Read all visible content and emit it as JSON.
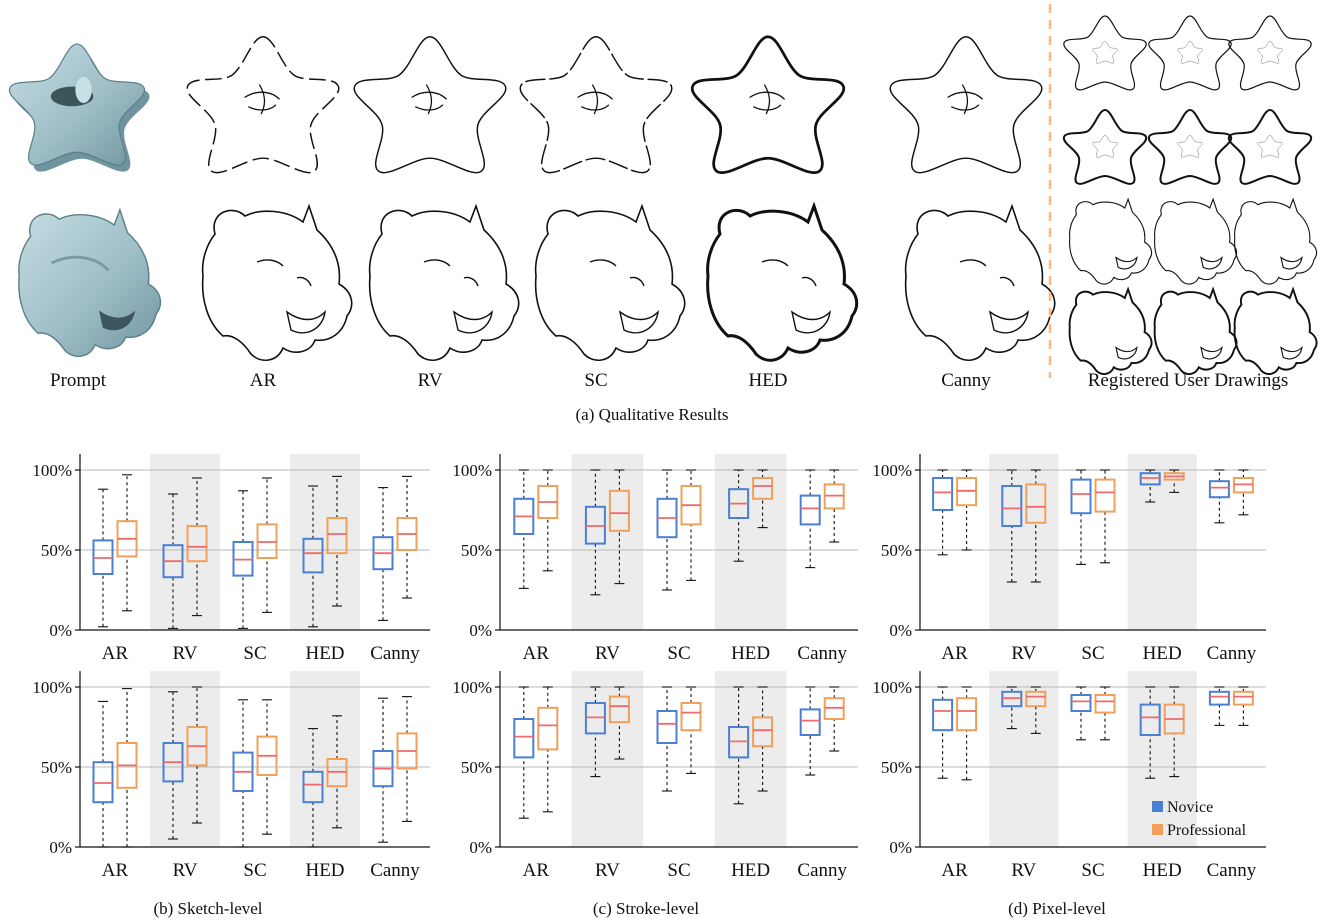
{
  "figure": {
    "top_row_labels": [
      "Prompt",
      "AR",
      "RV",
      "SC",
      "HED",
      "Canny",
      "Registered User Drawings"
    ],
    "caption_a": "(a) Qualitative Results",
    "caption_b": "(b) Sketch-level",
    "caption_c": "(c) Stroke-level",
    "caption_d": "(d) Pixel-level",
    "legend": [
      "Novice",
      "Professional"
    ],
    "icons": [
      "star-prompt-render",
      "panther-prompt-render",
      "star-sketch",
      "panther-sketch"
    ]
  },
  "colors": {
    "novice": "#4a7fd4",
    "professional": "#f0a05a",
    "median": "#ef6a6a",
    "highlight_band": "#ececec",
    "grid": "#b8b8b8",
    "render": "#a6c4cc",
    "divider": "#f5b888"
  },
  "chart_data": [
    {
      "type": "box",
      "name": "sketch-top",
      "categories": [
        "AR",
        "RV",
        "SC",
        "HED",
        "Canny"
      ],
      "yticks": [
        "0%",
        "50%",
        "100%"
      ],
      "ylim": [
        0,
        100
      ],
      "shaded": [
        "RV",
        "HED"
      ],
      "series": [
        {
          "name": "Novice",
          "boxes": [
            [
              2,
              35,
              45,
              56,
              88
            ],
            [
              1,
              33,
              43,
              53,
              85
            ],
            [
              1,
              34,
              44,
              55,
              87
            ],
            [
              2,
              36,
              48,
              57,
              90
            ],
            [
              6,
              38,
              48,
              58,
              89
            ]
          ]
        },
        {
          "name": "Professional",
          "boxes": [
            [
              12,
              46,
              57,
              68,
              97
            ],
            [
              9,
              43,
              52,
              65,
              95
            ],
            [
              11,
              45,
              55,
              66,
              95
            ],
            [
              15,
              48,
              60,
              70,
              96
            ],
            [
              20,
              50,
              60,
              70,
              96
            ]
          ]
        }
      ]
    },
    {
      "type": "box",
      "name": "stroke-top",
      "categories": [
        "AR",
        "RV",
        "SC",
        "HED",
        "Canny"
      ],
      "yticks": [
        "0%",
        "50%",
        "100%"
      ],
      "ylim": [
        0,
        100
      ],
      "shaded": [
        "RV",
        "HED"
      ],
      "series": [
        {
          "name": "Novice",
          "boxes": [
            [
              26,
              60,
              71,
              82,
              100
            ],
            [
              22,
              54,
              65,
              77,
              100
            ],
            [
              25,
              58,
              70,
              82,
              100
            ],
            [
              43,
              70,
              79,
              88,
              100
            ],
            [
              39,
              66,
              76,
              84,
              100
            ]
          ]
        },
        {
          "name": "Professional",
          "boxes": [
            [
              37,
              70,
              80,
              90,
              100
            ],
            [
              29,
              62,
              73,
              87,
              100
            ],
            [
              31,
              66,
              78,
              90,
              100
            ],
            [
              64,
              82,
              90,
              95,
              100
            ],
            [
              55,
              76,
              84,
              91,
              100
            ]
          ]
        }
      ]
    },
    {
      "type": "box",
      "name": "pixel-top",
      "categories": [
        "AR",
        "RV",
        "SC",
        "HED",
        "Canny"
      ],
      "yticks": [
        "0%",
        "50%",
        "100%"
      ],
      "ylim": [
        0,
        100
      ],
      "shaded": [
        "RV",
        "HED"
      ],
      "series": [
        {
          "name": "Novice",
          "boxes": [
            [
              47,
              75,
              86,
              95,
              100
            ],
            [
              30,
              65,
              76,
              90,
              100
            ],
            [
              41,
              73,
              85,
              94,
              100
            ],
            [
              80,
              91,
              95,
              98,
              100
            ],
            [
              67,
              83,
              89,
              93,
              100
            ]
          ]
        },
        {
          "name": "Professional",
          "boxes": [
            [
              50,
              78,
              87,
              95,
              100
            ],
            [
              30,
              67,
              77,
              91,
              100
            ],
            [
              42,
              74,
              86,
              94,
              100
            ],
            [
              86,
              94,
              96,
              98,
              100
            ],
            [
              72,
              86,
              91,
              95,
              100
            ]
          ]
        }
      ]
    },
    {
      "type": "box",
      "name": "sketch-bottom",
      "categories": [
        "AR",
        "RV",
        "SC",
        "HED",
        "Canny"
      ],
      "yticks": [
        "0%",
        "50%",
        "100%"
      ],
      "ylim": [
        0,
        100
      ],
      "shaded": [
        "RV",
        "HED"
      ],
      "series": [
        {
          "name": "Novice",
          "boxes": [
            [
              0,
              28,
              40,
              53,
              91
            ],
            [
              5,
              41,
              53,
              65,
              97
            ],
            [
              0,
              35,
              47,
              59,
              92
            ],
            [
              0,
              28,
              39,
              47,
              74
            ],
            [
              3,
              38,
              49,
              60,
              93
            ]
          ]
        },
        {
          "name": "Professional",
          "boxes": [
            [
              0,
              37,
              51,
              65,
              99
            ],
            [
              15,
              51,
              63,
              75,
              100
            ],
            [
              8,
              45,
              57,
              69,
              92
            ],
            [
              12,
              38,
              47,
              55,
              82
            ],
            [
              16,
              49,
              60,
              71,
              94
            ]
          ]
        }
      ]
    },
    {
      "type": "box",
      "name": "stroke-bottom",
      "categories": [
        "AR",
        "RV",
        "SC",
        "HED",
        "Canny"
      ],
      "yticks": [
        "0%",
        "50%",
        "100%"
      ],
      "ylim": [
        0,
        100
      ],
      "shaded": [
        "RV",
        "HED"
      ],
      "series": [
        {
          "name": "Novice",
          "boxes": [
            [
              18,
              56,
              69,
              80,
              100
            ],
            [
              44,
              71,
              81,
              90,
              100
            ],
            [
              35,
              65,
              77,
              85,
              100
            ],
            [
              27,
              56,
              66,
              75,
              100
            ],
            [
              45,
              70,
              79,
              86,
              100
            ]
          ]
        },
        {
          "name": "Professional",
          "boxes": [
            [
              22,
              61,
              76,
              87,
              100
            ],
            [
              55,
              78,
              88,
              94,
              100
            ],
            [
              46,
              73,
              84,
              90,
              100
            ],
            [
              35,
              63,
              73,
              81,
              100
            ],
            [
              60,
              80,
              87,
              93,
              100
            ]
          ]
        }
      ]
    },
    {
      "type": "box",
      "name": "pixel-bottom",
      "categories": [
        "AR",
        "RV",
        "SC",
        "HED",
        "Canny"
      ],
      "yticks": [
        "0%",
        "50%",
        "100%"
      ],
      "ylim": [
        0,
        100
      ],
      "shaded": [
        "RV",
        "HED"
      ],
      "series": [
        {
          "name": "Novice",
          "boxes": [
            [
              43,
              73,
              85,
              92,
              100
            ],
            [
              74,
              88,
              93,
              97,
              100
            ],
            [
              67,
              85,
              91,
              95,
              100
            ],
            [
              43,
              70,
              81,
              89,
              100
            ],
            [
              76,
              89,
              94,
              97,
              100
            ]
          ]
        },
        {
          "name": "Professional",
          "boxes": [
            [
              42,
              73,
              85,
              93,
              100
            ],
            [
              71,
              88,
              94,
              97,
              100
            ],
            [
              67,
              84,
              91,
              95,
              100
            ],
            [
              44,
              71,
              80,
              89,
              100
            ],
            [
              76,
              89,
              94,
              97,
              100
            ]
          ]
        }
      ]
    }
  ]
}
